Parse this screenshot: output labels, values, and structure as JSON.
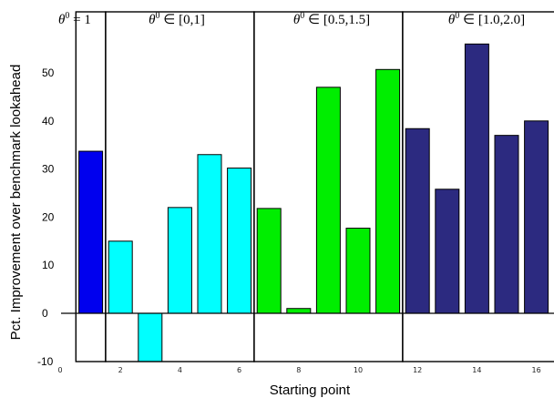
{
  "chart_data": {
    "type": "bar",
    "xlabel": "Starting point",
    "ylabel": "Pct. Improvement over benchmark lookahead",
    "ylim": [
      -10,
      57
    ],
    "yticks": [
      -10,
      0,
      10,
      20,
      30,
      40,
      50
    ],
    "xticks": [
      2,
      4,
      6,
      8,
      10,
      12,
      14,
      16
    ],
    "xlim": [
      0,
      17
    ],
    "bars": [
      {
        "x": 1,
        "value": 33.7,
        "group": 0
      },
      {
        "x": 2,
        "value": 15.0,
        "group": 1
      },
      {
        "x": 3,
        "value": -10.0,
        "group": 1
      },
      {
        "x": 4,
        "value": 22.0,
        "group": 1
      },
      {
        "x": 5,
        "value": 33.0,
        "group": 1
      },
      {
        "x": 6,
        "value": 30.2,
        "group": 1
      },
      {
        "x": 7,
        "value": 21.8,
        "group": 2
      },
      {
        "x": 8,
        "value": 1.0,
        "group": 2
      },
      {
        "x": 9,
        "value": 47.0,
        "group": 2
      },
      {
        "x": 10,
        "value": 17.7,
        "group": 2
      },
      {
        "x": 11,
        "value": 50.7,
        "group": 2
      },
      {
        "x": 12,
        "value": 38.4,
        "group": 3
      },
      {
        "x": 13,
        "value": 25.8,
        "group": 3
      },
      {
        "x": 14,
        "value": 56.0,
        "group": 3
      },
      {
        "x": 15,
        "value": 37.0,
        "group": 3
      },
      {
        "x": 16,
        "value": 40.0,
        "group": 3
      }
    ],
    "groups": [
      {
        "label_main": "θ",
        "label_sup": "0",
        "label_rest": " = 1",
        "color": "#0000ee",
        "from": 0.5,
        "to": 1.5
      },
      {
        "label_main": "θ",
        "label_sup": "0",
        "label_rest": " ∈ [0,1]",
        "color": "#00ffff",
        "from": 1.5,
        "to": 6.5
      },
      {
        "label_main": "θ",
        "label_sup": "0",
        "label_rest": " ∈ [0.5,1.5]",
        "color": "#00ee00",
        "from": 6.5,
        "to": 11.5
      },
      {
        "label_main": "θ",
        "label_sup": "0",
        "label_rest": " ∈ [1.0,2.0]",
        "color": "#2c2a80",
        "from": 11.5,
        "to": 16.8
      }
    ]
  }
}
